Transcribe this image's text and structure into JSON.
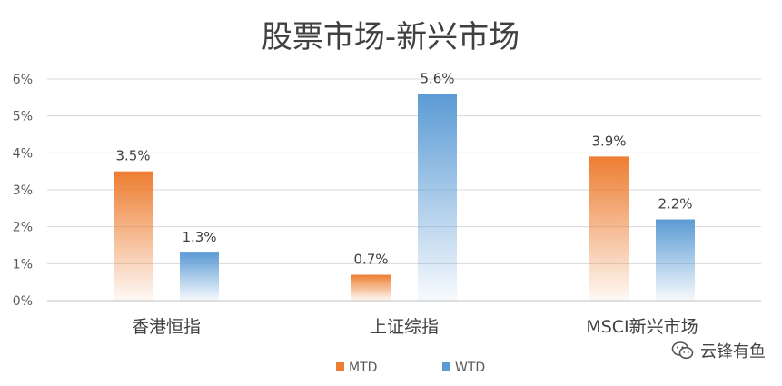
{
  "chart_data": {
    "type": "bar",
    "title": "股票市场-新兴市场",
    "categories": [
      "香港恒指",
      "上证综指",
      "MSCI新兴市场"
    ],
    "series": [
      {
        "name": "MTD",
        "values": [
          3.5,
          0.7,
          3.9
        ],
        "color": "#ED7D31"
      },
      {
        "name": "WTD",
        "values": [
          1.3,
          5.6,
          2.2
        ],
        "color": "#5B9BD5"
      }
    ],
    "data_labels": {
      "MTD": [
        "3.5%",
        "0.7%",
        "3.9%"
      ],
      "WTD": [
        "1.3%",
        "5.6%",
        "2.2%"
      ]
    },
    "yticks": [
      "0%",
      "1%",
      "2%",
      "3%",
      "4%",
      "5%",
      "6%"
    ],
    "ylim": [
      0,
      6
    ],
    "unit": "%",
    "grid": true,
    "legend_position": "bottom-center"
  },
  "watermark": {
    "text": "云锋有鱼",
    "icon": "wechat-icon"
  }
}
